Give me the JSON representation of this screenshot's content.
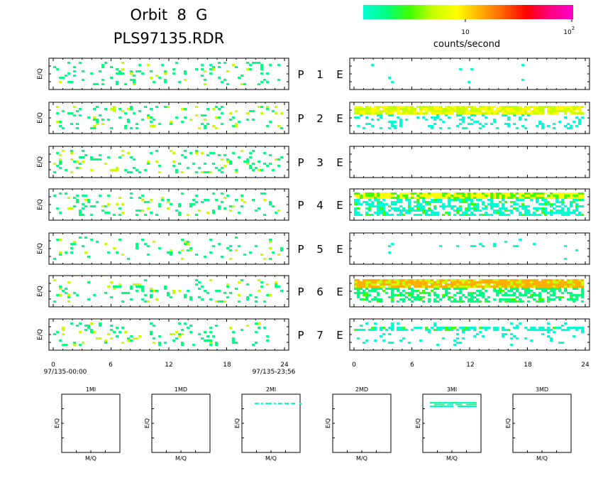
{
  "header": {
    "title_line1": "Orbit  8  G",
    "title_line2": "PLS97135.RDR"
  },
  "colorbar": {
    "label": "counts/second",
    "tick_10": "10",
    "tick_100_base": "10",
    "tick_100_exp": "2",
    "colors": [
      "#00ffd0",
      "#00ff80",
      "#40ff00",
      "#c8ff00",
      "#ffff00",
      "#ffb000",
      "#ff6000",
      "#ff0000",
      "#ff0080",
      "#ff00c8"
    ]
  },
  "chart_data": {
    "type": "heatmap",
    "value_scale": "log counts/second, ~1 to 100",
    "left_panels": {
      "ylabel": "E/Q",
      "x_ticks": [
        "0",
        "6",
        "12",
        "18",
        "24"
      ],
      "xlim": [
        0,
        24
      ],
      "start_label": "97/135-00:00",
      "end_label": "97/135-23:56",
      "density": [
        0.55,
        0.55,
        0.6,
        0.6,
        0.4,
        0.55,
        0.55
      ]
    },
    "right_panels": {
      "ylabel": "",
      "x_ticks": [
        "0",
        "6",
        "12",
        "18",
        "24"
      ],
      "xlim": [
        0,
        24
      ],
      "activity": [
        "sparse",
        "band-top",
        "empty",
        "band-top-dense",
        "sparse-line",
        "band-top-strong",
        "band-mid"
      ]
    },
    "channels": [
      {
        "p": "P",
        "num": "1",
        "e": "E"
      },
      {
        "p": "P",
        "num": "2",
        "e": "E"
      },
      {
        "p": "P",
        "num": "3",
        "e": "E"
      },
      {
        "p": "P",
        "num": "4",
        "e": "E"
      },
      {
        "p": "P",
        "num": "5",
        "e": "E"
      },
      {
        "p": "P",
        "num": "6",
        "e": "E"
      },
      {
        "p": "P",
        "num": "7",
        "e": "E"
      }
    ],
    "mq_panels": [
      {
        "title": "1MI",
        "xlabel": "M/Q",
        "ylabel": "E/Q",
        "data": "empty"
      },
      {
        "title": "1MD",
        "xlabel": "M/Q",
        "ylabel": "E/Q",
        "data": "empty"
      },
      {
        "title": "2MI",
        "xlabel": "M/Q",
        "ylabel": "E/Q",
        "data": "sparse-row-top"
      },
      {
        "title": "2MD",
        "xlabel": "M/Q",
        "ylabel": "E/Q",
        "data": "empty"
      },
      {
        "title": "3MI",
        "xlabel": "M/Q",
        "ylabel": "E/Q",
        "data": "dense-rows-top"
      },
      {
        "title": "3MD",
        "xlabel": "M/Q",
        "ylabel": "E/Q",
        "data": "empty"
      }
    ]
  }
}
